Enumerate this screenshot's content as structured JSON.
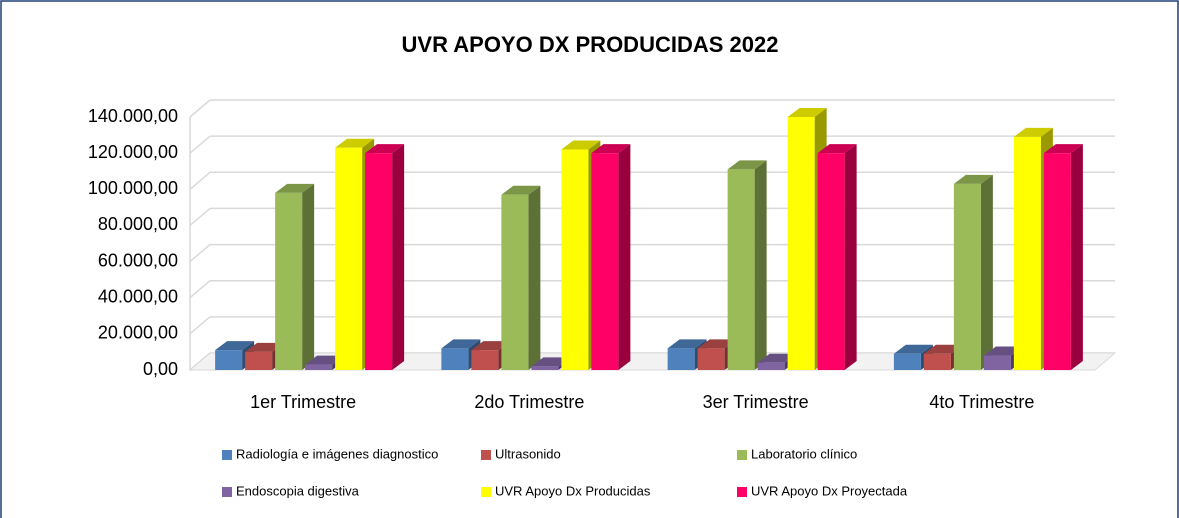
{
  "chart_data": {
    "type": "bar3d",
    "title": "UVR APOYO DX PRODUCIDAS 2022",
    "categories": [
      "1er Trimestre",
      "2do Trimestre",
      "3er Trimestre",
      "4to Trimestre"
    ],
    "series": [
      {
        "name": "Radiología e imágenes diagnostico",
        "color": "#4f81bd",
        "values": [
          11000,
          12000,
          12000,
          9000
        ]
      },
      {
        "name": "Ultrasonido",
        "color": "#c0504d",
        "values": [
          10000,
          11000,
          12000,
          9000
        ]
      },
      {
        "name": "Laboratorio clínico",
        "color": "#9bbb59",
        "values": [
          98000,
          97000,
          111000,
          103000
        ]
      },
      {
        "name": "Endoscopia digestiva",
        "color": "#8064a2",
        "values": [
          3000,
          2000,
          4000,
          8000
        ]
      },
      {
        "name": "UVR Apoyo Dx Producidas",
        "color": "#ffff00",
        "values": [
          123000,
          122000,
          140000,
          129000
        ]
      },
      {
        "name": "UVR Apoyo Dx Proyectada",
        "color": "#ff0066",
        "values": [
          120000,
          120000,
          120000,
          120000
        ]
      }
    ],
    "ylim": [
      0,
      140000
    ],
    "yticks": [
      {
        "value": 0,
        "label": "0,00"
      },
      {
        "value": 20000,
        "label": "20.000,00"
      },
      {
        "value": 40000,
        "label": "40.000,00"
      },
      {
        "value": 60000,
        "label": "60.000,00"
      },
      {
        "value": 80000,
        "label": "80.000,00"
      },
      {
        "value": 100000,
        "label": "100.000,00"
      },
      {
        "value": 120000,
        "label": "120.000,00"
      },
      {
        "value": 140000,
        "label": "140.000,00"
      }
    ],
    "grid": true,
    "legend": "bottom"
  }
}
